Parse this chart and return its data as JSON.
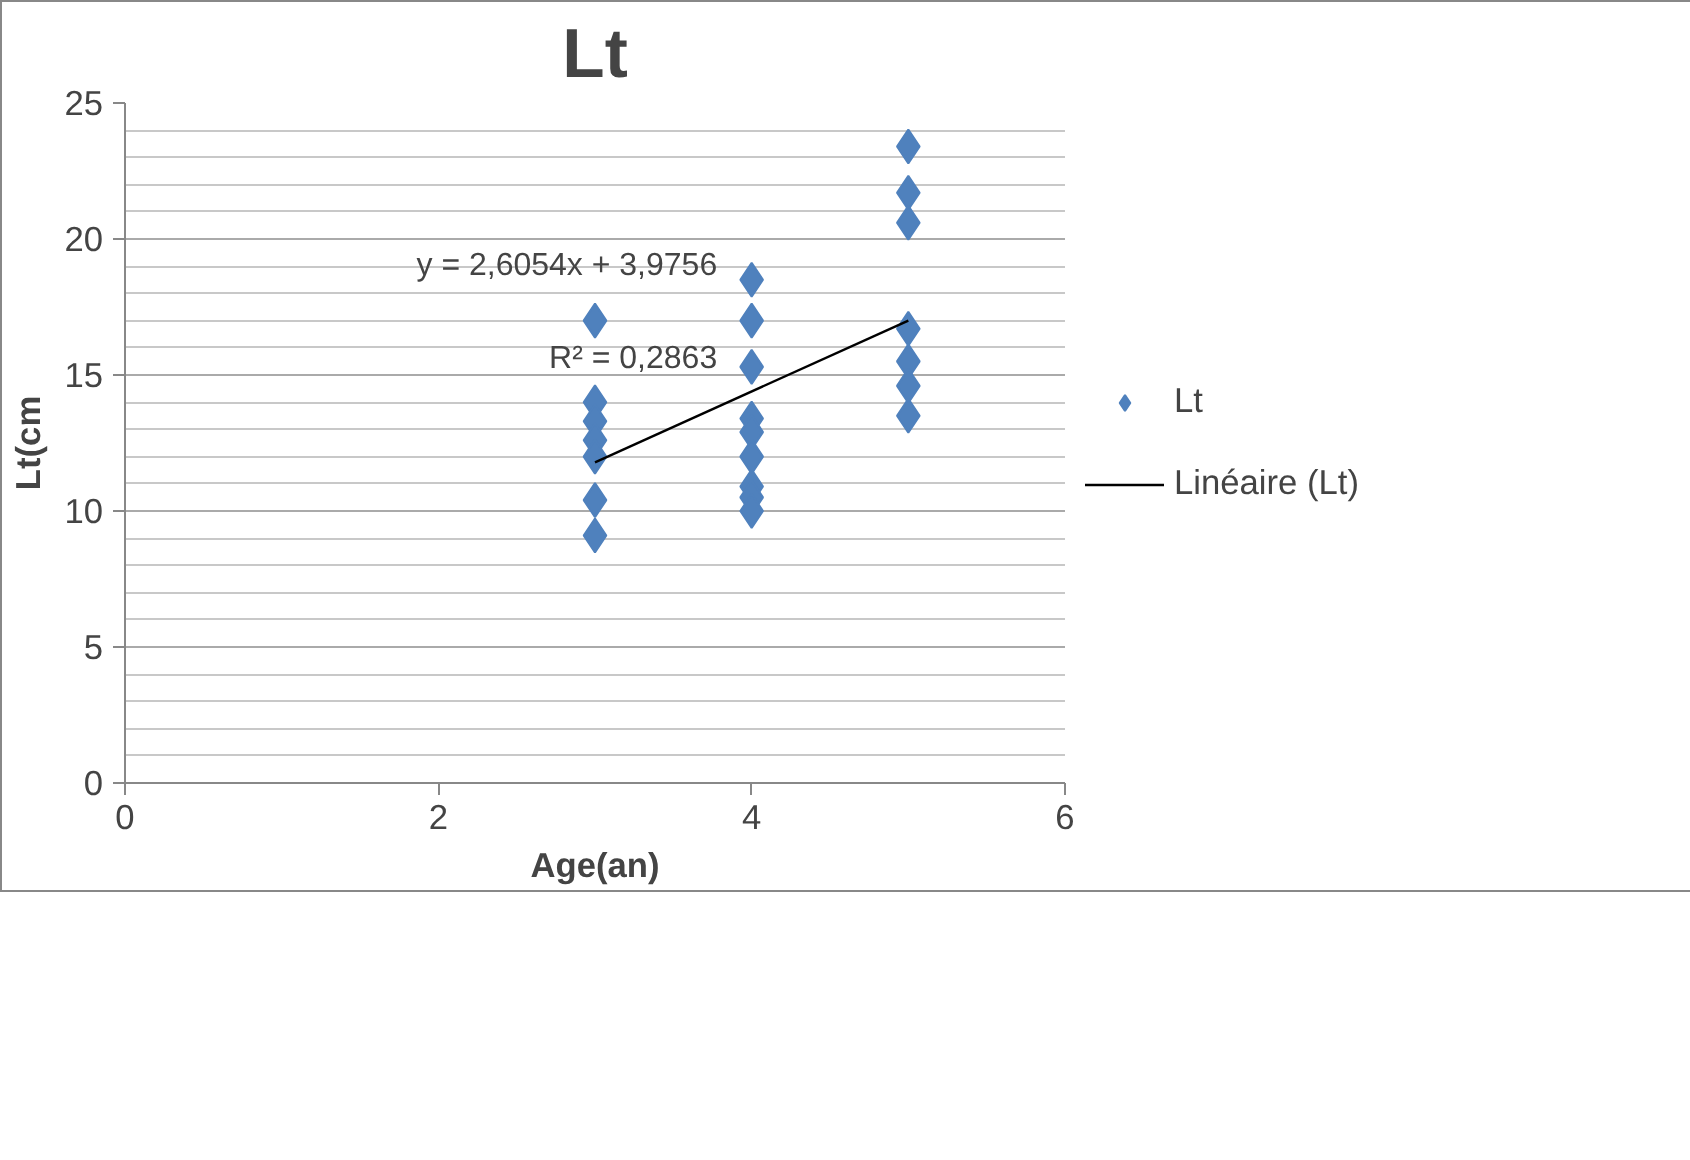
{
  "chart_data": {
    "type": "scatter",
    "title": "Lt",
    "xlabel": "Age(an)",
    "ylabel": "Lt(cm",
    "series": [
      {
        "name": "Lt",
        "color": "#4f81bd",
        "marker": "diamond",
        "x": [
          3,
          3,
          3,
          3,
          3,
          3,
          3,
          4,
          4,
          4,
          4,
          4,
          4,
          4,
          4,
          4,
          5,
          5,
          5,
          5,
          5,
          5,
          5
        ],
        "values": [
          17,
          14,
          13.3,
          12.6,
          12,
          10.4,
          9.1,
          18.5,
          17,
          15.3,
          13.4,
          12.9,
          12,
          10.9,
          10.5,
          10,
          23.4,
          21.7,
          20.6,
          16.7,
          15.5,
          14.6,
          13.5
        ]
      },
      {
        "name": "Linéaire (Lt)",
        "type": "line",
        "color": "#000000",
        "line_style": "solid",
        "x": [
          3,
          5
        ],
        "values": [
          11.79,
          17.0
        ]
      }
    ],
    "annotations": [
      "y = 2,6054x + 3,9756",
      "R² = 0,2863"
    ],
    "xlim": [
      0,
      6
    ],
    "xticks": [
      0,
      2,
      4,
      6
    ],
    "ylim": [
      0,
      25
    ],
    "yticks": [
      0,
      5,
      10,
      15,
      20,
      25
    ],
    "grid": "y",
    "legend": "right"
  }
}
